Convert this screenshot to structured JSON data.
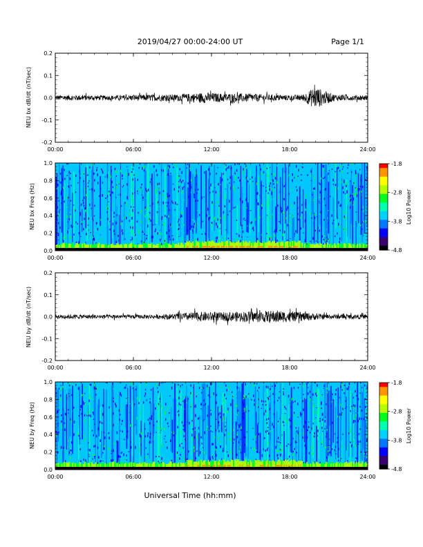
{
  "header": {
    "title": "2019/04/27  00:00-24:00 UT",
    "page": "Page 1/1"
  },
  "footer": {
    "xlabel": "Universal Time (hh:mm)"
  },
  "colorscale": [
    "#000000",
    "#3a006e",
    "#0000ff",
    "#0078ff",
    "#00d2ff",
    "#00ffb0",
    "#00ff20",
    "#b4ff00",
    "#ffff00",
    "#ff9600",
    "#ff0000"
  ],
  "colors": {
    "trace": "#000000",
    "spectrogram_bg": "#00c8ff"
  },
  "chart_data": [
    {
      "type": "line",
      "ylabel": "NEU bx dB/dt (nT/sec)",
      "xlim": [
        "00:00",
        "24:00"
      ],
      "ylim": [
        -0.2,
        0.2
      ],
      "x_ticks": [
        "00:00",
        "06:00",
        "12:00",
        "18:00",
        "24:00"
      ],
      "y_ticks": [
        "0.2",
        "0.1",
        "0.0",
        "-0.1",
        "-0.2"
      ],
      "y_tick_values": [
        0.2,
        0.1,
        0.0,
        -0.1,
        -0.2
      ],
      "series": [
        {
          "x_hours": [
            0,
            2,
            4,
            6,
            8,
            9.5,
            10.5,
            11.5,
            12.5,
            13.5,
            15,
            16.5,
            18,
            19,
            20,
            20.7,
            21.5,
            23,
            24
          ],
          "amplitude": [
            0.012,
            0.012,
            0.01,
            0.013,
            0.015,
            0.015,
            0.02,
            0.024,
            0.02,
            0.02,
            0.018,
            0.014,
            0.012,
            0.014,
            0.05,
            0.03,
            0.015,
            0.012,
            0.012
          ]
        }
      ]
    },
    {
      "type": "heatmap",
      "ylabel": "NEU bx Freq (Hz)",
      "xlim": [
        "00:00",
        "24:00"
      ],
      "ylim": [
        0.0,
        1.0
      ],
      "x_ticks": [
        "00:00",
        "06:00",
        "12:00",
        "18:00",
        "24:00"
      ],
      "y_ticks": [
        "1.0",
        "0.8",
        "0.6",
        "0.4",
        "0.2",
        "0.0"
      ],
      "colorbar": {
        "label": "Log10 Power",
        "range": [
          -4.8,
          -1.8
        ],
        "ticks": [
          "-1.8",
          "-2.8",
          "-3.8",
          "-4.8"
        ]
      }
    },
    {
      "type": "line",
      "ylabel": "NEU by dB/dt (nT/sec)",
      "xlim": [
        "00:00",
        "24:00"
      ],
      "ylim": [
        -0.2,
        0.2
      ],
      "x_ticks": [
        "00:00",
        "06:00",
        "12:00",
        "18:00",
        "24:00"
      ],
      "y_ticks": [
        "0.2",
        "0.1",
        "0.0",
        "-0.1",
        "-0.2"
      ],
      "y_tick_values": [
        0.2,
        0.1,
        0.0,
        -0.1,
        -0.2
      ],
      "series": [
        {
          "x_hours": [
            0,
            2,
            4,
            6,
            8,
            9.5,
            10.5,
            11.5,
            13,
            14.5,
            16,
            17,
            18,
            19,
            20.5,
            22,
            24
          ],
          "amplitude": [
            0.01,
            0.01,
            0.009,
            0.009,
            0.01,
            0.015,
            0.02,
            0.022,
            0.02,
            0.024,
            0.026,
            0.03,
            0.022,
            0.02,
            0.012,
            0.01,
            0.01
          ]
        }
      ]
    },
    {
      "type": "heatmap",
      "ylabel": "NEU by Freq (Hz)",
      "xlim": [
        "00:00",
        "24:00"
      ],
      "ylim": [
        0.0,
        1.0
      ],
      "x_ticks": [
        "00:00",
        "06:00",
        "12:00",
        "18:00",
        "24:00"
      ],
      "y_ticks": [
        "1.0",
        "0.8",
        "0.6",
        "0.4",
        "0.2",
        "0.0"
      ],
      "colorbar": {
        "label": "Log10 Power",
        "range": [
          -4.8,
          -1.8
        ],
        "ticks": [
          "-1.8",
          "-2.8",
          "-3.8",
          "-4.8"
        ]
      }
    }
  ]
}
